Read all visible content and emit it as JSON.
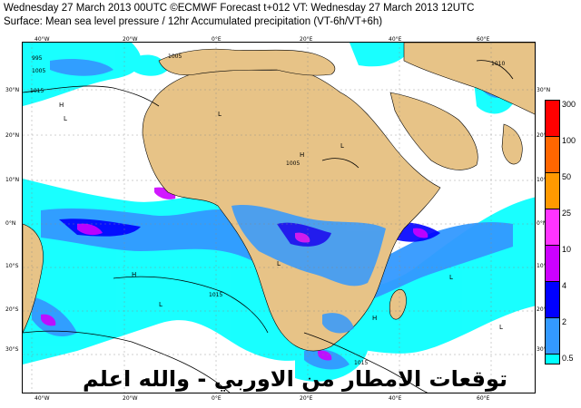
{
  "header": {
    "line1": "Wednesday 27 March 2013 00UTC ©ECMWF Forecast t+012 VT: Wednesday 27 March 2013 12UTC",
    "line2": "Surface: Mean sea level pressure / 12hr Accumulated precipitation (VT-6h/VT+6h)"
  },
  "map": {
    "lon_labels_top": [
      "40°W",
      "20°W",
      "0°E",
      "20°E",
      "40°E",
      "60°E"
    ],
    "lon_labels_bottom": [
      "40°W",
      "20°W",
      "0°E",
      "20°E",
      "40°E",
      "60°E"
    ],
    "lat_labels_left": [
      "30°N",
      "20°N",
      "10°N",
      "0°N",
      "10°S",
      "20°S",
      "30°S"
    ],
    "lat_labels_right": [
      "30°N",
      "20°N",
      "10°N",
      "0°N",
      "10°S",
      "20°S",
      "30°S"
    ],
    "isobar_labels": [
      "995",
      "1005",
      "1015",
      "1005",
      "1010",
      "1005",
      "1015",
      "1015"
    ],
    "pressure_centres": [
      "H",
      "L",
      "L",
      "H",
      "L",
      "H",
      "L",
      "L",
      "H",
      "L",
      "L"
    ]
  },
  "legend": {
    "title": "",
    "ticks": [
      "300",
      "100",
      "50",
      "25",
      "10",
      "4",
      "2",
      "0.5"
    ],
    "colors": [
      "#ff0000",
      "#ff6600",
      "#ff9900",
      "#ff33ff",
      "#cc00ff",
      "#0000ff",
      "#3399ff",
      "#00ffff"
    ]
  },
  "overlay_caption": "توقعات الامطار من الاوربي - والله اعلم"
}
